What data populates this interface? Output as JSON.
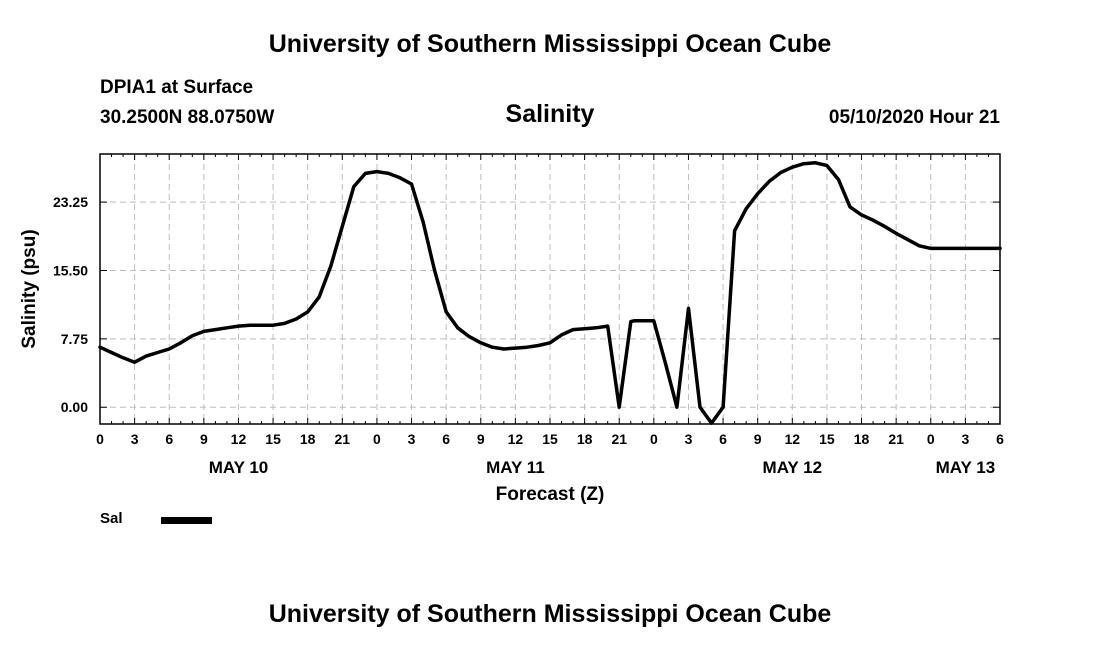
{
  "header": {
    "title": "University of Southern Mississippi Ocean Cube",
    "station_name": "DPIA1 at Surface",
    "station_coords": "30.2500N 88.0750W",
    "run_time": "05/10/2020 Hour 21"
  },
  "footer": {
    "title": "University of Southern Mississippi Ocean Cube"
  },
  "legend": {
    "label": "Sal",
    "color": "#000000"
  },
  "chart_data": {
    "type": "line",
    "title": "Salinity",
    "xlabel": "Forecast (Z)",
    "ylabel": "Salinity (psu)",
    "x_unit": "hours from May 10 00Z",
    "xlim": [
      0,
      78
    ],
    "ylim": [
      -1.9,
      28.7
    ],
    "grid": true,
    "y_ticks": [
      0.0,
      7.75,
      15.5,
      23.25
    ],
    "y_tick_labels": [
      "0.00",
      "7.75",
      "15.50",
      "23.25"
    ],
    "x_ticks": [
      0,
      3,
      6,
      9,
      12,
      15,
      18,
      21,
      24,
      27,
      30,
      33,
      36,
      39,
      42,
      45,
      48,
      51,
      54,
      57,
      60,
      63,
      66,
      69,
      72,
      75,
      78
    ],
    "x_tick_labels": [
      "0",
      "3",
      "6",
      "9",
      "12",
      "15",
      "18",
      "21",
      "0",
      "3",
      "6",
      "9",
      "12",
      "15",
      "18",
      "21",
      "0",
      "3",
      "6",
      "9",
      "12",
      "15",
      "18",
      "21",
      "0",
      "3",
      "6"
    ],
    "day_labels": [
      {
        "label": "MAY 10",
        "hour": 12
      },
      {
        "label": "MAY 11",
        "hour": 36
      },
      {
        "label": "MAY 12",
        "hour": 60
      },
      {
        "label": "MAY 13",
        "hour": 75
      }
    ],
    "series": [
      {
        "name": "Sal",
        "color": "#000000",
        "x": [
          0,
          1,
          2,
          3,
          4,
          5,
          6,
          7,
          8,
          9,
          10,
          11,
          12,
          13,
          14,
          15,
          16,
          17,
          18,
          19,
          20,
          21,
          22,
          23,
          24,
          25,
          26,
          27,
          28,
          29,
          30,
          31,
          32,
          33,
          34,
          35,
          36,
          37,
          38,
          39,
          40,
          41,
          42,
          43,
          44,
          45,
          46,
          46.3,
          47,
          48,
          49,
          50,
          51,
          52,
          53,
          54,
          55,
          56,
          57,
          58,
          59,
          60,
          61,
          62,
          63,
          64,
          65,
          66,
          67,
          68,
          69,
          70,
          71,
          72,
          73,
          74,
          75,
          76,
          77,
          78
        ],
        "values": [
          6.8,
          6.2,
          5.6,
          5.1,
          5.8,
          6.2,
          6.6,
          7.3,
          8.1,
          8.6,
          8.8,
          9.0,
          9.2,
          9.3,
          9.3,
          9.3,
          9.5,
          10.0,
          10.8,
          12.5,
          16.0,
          20.5,
          25.0,
          26.5,
          26.7,
          26.5,
          26.0,
          25.3,
          21.0,
          15.5,
          10.8,
          9.0,
          8.0,
          7.3,
          6.8,
          6.6,
          6.7,
          6.8,
          7.0,
          7.3,
          8.2,
          8.8,
          8.9,
          9.0,
          9.2,
          0.0,
          9.7,
          9.8,
          9.8,
          9.8,
          5.0,
          0.0,
          11.2,
          0.0,
          -1.8,
          0.0,
          20.0,
          22.5,
          24.2,
          25.6,
          26.6,
          27.2,
          27.6,
          27.7,
          27.4,
          25.8,
          22.7,
          21.8,
          21.2,
          20.5,
          19.7,
          19.0,
          18.3,
          18.0,
          18.0,
          18.0,
          18.0,
          18.0,
          18.0,
          18.0
        ]
      }
    ]
  }
}
